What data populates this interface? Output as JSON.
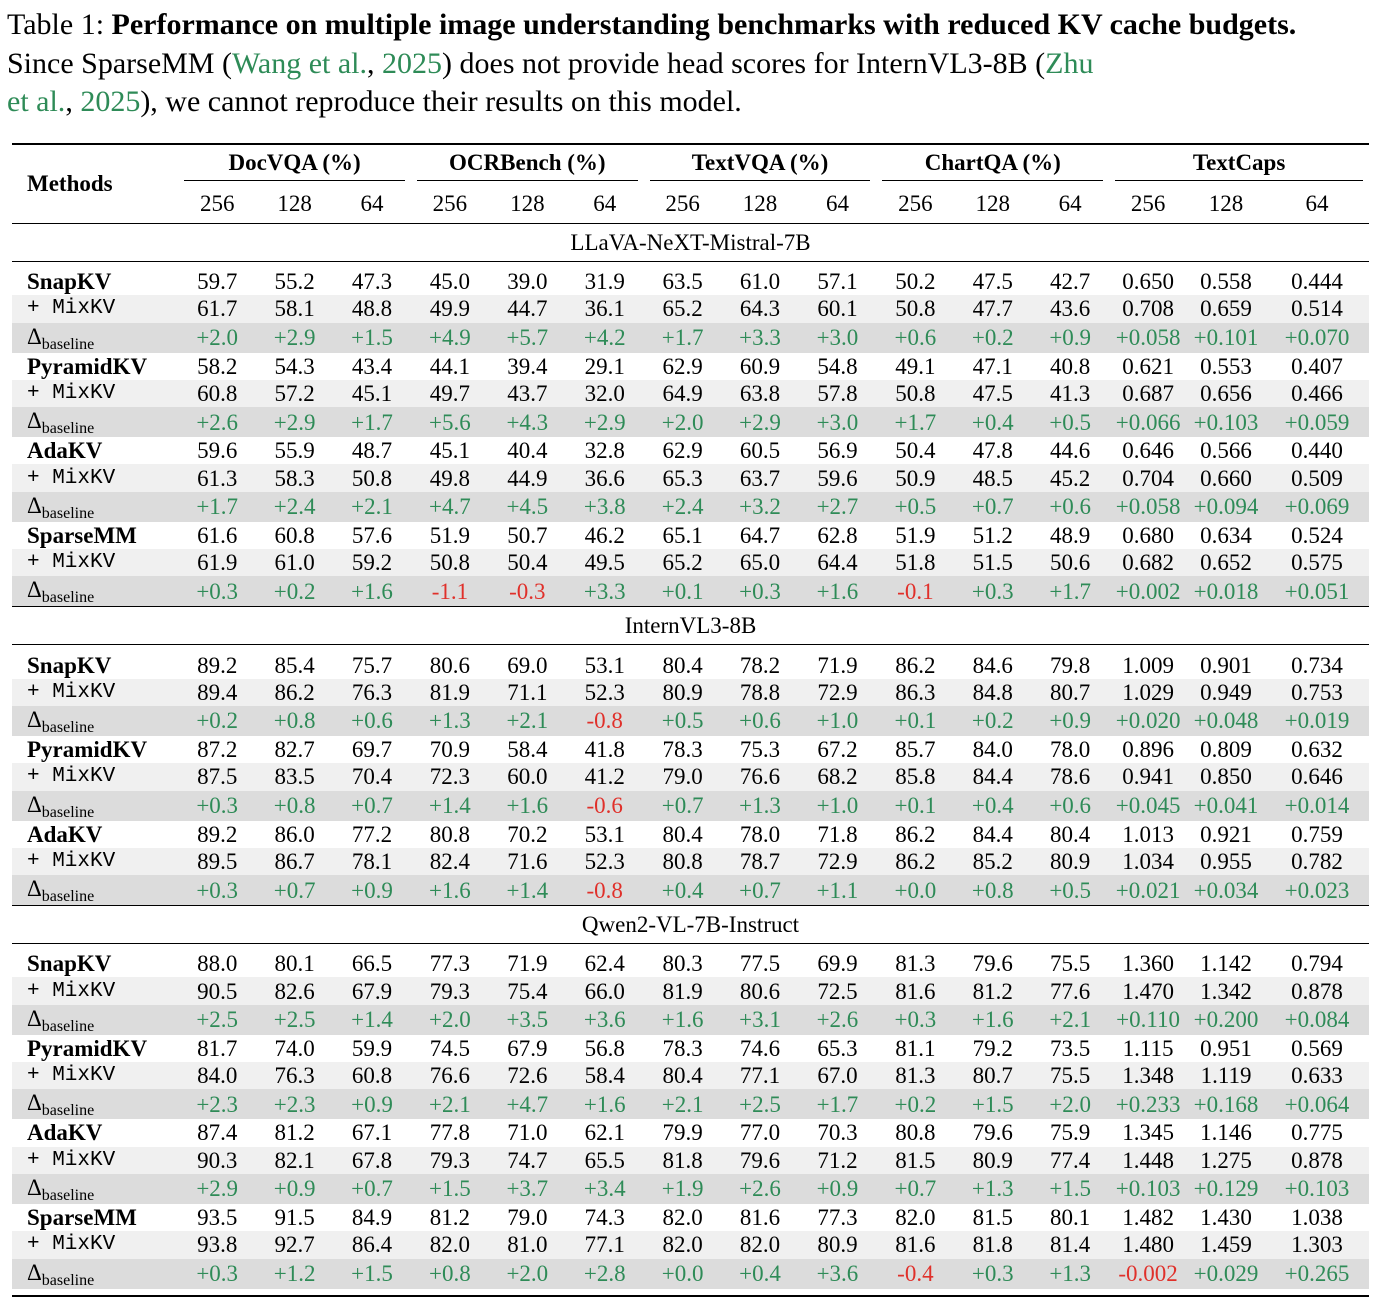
{
  "caption": {
    "label": "Table 1:",
    "title": "Performance on multiple image understanding benchmarks with reduced KV cache budgets.",
    "text_before_cite1": "Since SparseMM (",
    "cite1_name": "Wang et al.",
    "cite1_sep": ", ",
    "cite1_year": "2025",
    "text_between": ") does not provide head scores for InternVL3-8B (",
    "cite2_name_line1": "Zhu",
    "cite2_name_line2": "et al.",
    "cite2_sep": ", ",
    "cite2_year": "2025",
    "text_after": "), we cannot reproduce their results on this model."
  },
  "table": {
    "methods_header": "Methods",
    "groups": [
      "DocVQA (%)",
      "OCRBench (%)",
      "TextVQA (%)",
      "ChartQA (%)",
      "TextCaps"
    ],
    "budgets": [
      "256",
      "128",
      "64"
    ],
    "mix_label": "+ MixKV",
    "delta_label": "Δ",
    "delta_sub": "baseline",
    "sections": [
      {
        "model": "LLaVA-NeXT-Mistral-7B",
        "blocks": [
          {
            "method": "SnapKV",
            "base": [
              "59.7",
              "55.2",
              "47.3",
              "45.0",
              "39.0",
              "31.9",
              "63.5",
              "61.0",
              "57.1",
              "50.2",
              "47.5",
              "42.7",
              "0.650",
              "0.558",
              "0.444"
            ],
            "mix": [
              "61.7",
              "58.1",
              "48.8",
              "49.9",
              "44.7",
              "36.1",
              "65.2",
              "64.3",
              "60.1",
              "50.8",
              "47.7",
              "43.6",
              "0.708",
              "0.659",
              "0.514"
            ],
            "delta": [
              "+2.0",
              "+2.9",
              "+1.5",
              "+4.9",
              "+5.7",
              "+4.2",
              "+1.7",
              "+3.3",
              "+3.0",
              "+0.6",
              "+0.2",
              "+0.9",
              "+0.058",
              "+0.101",
              "+0.070"
            ]
          },
          {
            "method": "PyramidKV",
            "base": [
              "58.2",
              "54.3",
              "43.4",
              "44.1",
              "39.4",
              "29.1",
              "62.9",
              "60.9",
              "54.8",
              "49.1",
              "47.1",
              "40.8",
              "0.621",
              "0.553",
              "0.407"
            ],
            "mix": [
              "60.8",
              "57.2",
              "45.1",
              "49.7",
              "43.7",
              "32.0",
              "64.9",
              "63.8",
              "57.8",
              "50.8",
              "47.5",
              "41.3",
              "0.687",
              "0.656",
              "0.466"
            ],
            "delta": [
              "+2.6",
              "+2.9",
              "+1.7",
              "+5.6",
              "+4.3",
              "+2.9",
              "+2.0",
              "+2.9",
              "+3.0",
              "+1.7",
              "+0.4",
              "+0.5",
              "+0.066",
              "+0.103",
              "+0.059"
            ]
          },
          {
            "method": "AdaKV",
            "base": [
              "59.6",
              "55.9",
              "48.7",
              "45.1",
              "40.4",
              "32.8",
              "62.9",
              "60.5",
              "56.9",
              "50.4",
              "47.8",
              "44.6",
              "0.646",
              "0.566",
              "0.440"
            ],
            "mix": [
              "61.3",
              "58.3",
              "50.8",
              "49.8",
              "44.9",
              "36.6",
              "65.3",
              "63.7",
              "59.6",
              "50.9",
              "48.5",
              "45.2",
              "0.704",
              "0.660",
              "0.509"
            ],
            "delta": [
              "+1.7",
              "+2.4",
              "+2.1",
              "+4.7",
              "+4.5",
              "+3.8",
              "+2.4",
              "+3.2",
              "+2.7",
              "+0.5",
              "+0.7",
              "+0.6",
              "+0.058",
              "+0.094",
              "+0.069"
            ]
          },
          {
            "method": "SparseMM",
            "base": [
              "61.6",
              "60.8",
              "57.6",
              "51.9",
              "50.7",
              "46.2",
              "65.1",
              "64.7",
              "62.8",
              "51.9",
              "51.2",
              "48.9",
              "0.680",
              "0.634",
              "0.524"
            ],
            "mix": [
              "61.9",
              "61.0",
              "59.2",
              "50.8",
              "50.4",
              "49.5",
              "65.2",
              "65.0",
              "64.4",
              "51.8",
              "51.5",
              "50.6",
              "0.682",
              "0.652",
              "0.575"
            ],
            "delta": [
              "+0.3",
              "+0.2",
              "+1.6",
              "-1.1",
              "-0.3",
              "+3.3",
              "+0.1",
              "+0.3",
              "+1.6",
              "-0.1",
              "+0.3",
              "+1.7",
              "+0.002",
              "+0.018",
              "+0.051"
            ]
          }
        ]
      },
      {
        "model": "InternVL3-8B",
        "blocks": [
          {
            "method": "SnapKV",
            "base": [
              "89.2",
              "85.4",
              "75.7",
              "80.6",
              "69.0",
              "53.1",
              "80.4",
              "78.2",
              "71.9",
              "86.2",
              "84.6",
              "79.8",
              "1.009",
              "0.901",
              "0.734"
            ],
            "mix": [
              "89.4",
              "86.2",
              "76.3",
              "81.9",
              "71.1",
              "52.3",
              "80.9",
              "78.8",
              "72.9",
              "86.3",
              "84.8",
              "80.7",
              "1.029",
              "0.949",
              "0.753"
            ],
            "delta": [
              "+0.2",
              "+0.8",
              "+0.6",
              "+1.3",
              "+2.1",
              "-0.8",
              "+0.5",
              "+0.6",
              "+1.0",
              "+0.1",
              "+0.2",
              "+0.9",
              "+0.020",
              "+0.048",
              "+0.019"
            ]
          },
          {
            "method": "PyramidKV",
            "base": [
              "87.2",
              "82.7",
              "69.7",
              "70.9",
              "58.4",
              "41.8",
              "78.3",
              "75.3",
              "67.2",
              "85.7",
              "84.0",
              "78.0",
              "0.896",
              "0.809",
              "0.632"
            ],
            "mix": [
              "87.5",
              "83.5",
              "70.4",
              "72.3",
              "60.0",
              "41.2",
              "79.0",
              "76.6",
              "68.2",
              "85.8",
              "84.4",
              "78.6",
              "0.941",
              "0.850",
              "0.646"
            ],
            "delta": [
              "+0.3",
              "+0.8",
              "+0.7",
              "+1.4",
              "+1.6",
              "-0.6",
              "+0.7",
              "+1.3",
              "+1.0",
              "+0.1",
              "+0.4",
              "+0.6",
              "+0.045",
              "+0.041",
              "+0.014"
            ]
          },
          {
            "method": "AdaKV",
            "base": [
              "89.2",
              "86.0",
              "77.2",
              "80.8",
              "70.2",
              "53.1",
              "80.4",
              "78.0",
              "71.8",
              "86.2",
              "84.4",
              "80.4",
              "1.013",
              "0.921",
              "0.759"
            ],
            "mix": [
              "89.5",
              "86.7",
              "78.1",
              "82.4",
              "71.6",
              "52.3",
              "80.8",
              "78.7",
              "72.9",
              "86.2",
              "85.2",
              "80.9",
              "1.034",
              "0.955",
              "0.782"
            ],
            "delta": [
              "+0.3",
              "+0.7",
              "+0.9",
              "+1.6",
              "+1.4",
              "-0.8",
              "+0.4",
              "+0.7",
              "+1.1",
              "+0.0",
              "+0.8",
              "+0.5",
              "+0.021",
              "+0.034",
              "+0.023"
            ]
          }
        ]
      },
      {
        "model": "Qwen2-VL-7B-Instruct",
        "blocks": [
          {
            "method": "SnapKV",
            "base": [
              "88.0",
              "80.1",
              "66.5",
              "77.3",
              "71.9",
              "62.4",
              "80.3",
              "77.5",
              "69.9",
              "81.3",
              "79.6",
              "75.5",
              "1.360",
              "1.142",
              "0.794"
            ],
            "mix": [
              "90.5",
              "82.6",
              "67.9",
              "79.3",
              "75.4",
              "66.0",
              "81.9",
              "80.6",
              "72.5",
              "81.6",
              "81.2",
              "77.6",
              "1.470",
              "1.342",
              "0.878"
            ],
            "delta": [
              "+2.5",
              "+2.5",
              "+1.4",
              "+2.0",
              "+3.5",
              "+3.6",
              "+1.6",
              "+3.1",
              "+2.6",
              "+0.3",
              "+1.6",
              "+2.1",
              "+0.110",
              "+0.200",
              "+0.084"
            ]
          },
          {
            "method": "PyramidKV",
            "base": [
              "81.7",
              "74.0",
              "59.9",
              "74.5",
              "67.9",
              "56.8",
              "78.3",
              "74.6",
              "65.3",
              "81.1",
              "79.2",
              "73.5",
              "1.115",
              "0.951",
              "0.569"
            ],
            "mix": [
              "84.0",
              "76.3",
              "60.8",
              "76.6",
              "72.6",
              "58.4",
              "80.4",
              "77.1",
              "67.0",
              "81.3",
              "80.7",
              "75.5",
              "1.348",
              "1.119",
              "0.633"
            ],
            "delta": [
              "+2.3",
              "+2.3",
              "+0.9",
              "+2.1",
              "+4.7",
              "+1.6",
              "+2.1",
              "+2.5",
              "+1.7",
              "+0.2",
              "+1.5",
              "+2.0",
              "+0.233",
              "+0.168",
              "+0.064"
            ]
          },
          {
            "method": "AdaKV",
            "base": [
              "87.4",
              "81.2",
              "67.1",
              "77.8",
              "71.0",
              "62.1",
              "79.9",
              "77.0",
              "70.3",
              "80.8",
              "79.6",
              "75.9",
              "1.345",
              "1.146",
              "0.775"
            ],
            "mix": [
              "90.3",
              "82.1",
              "67.8",
              "79.3",
              "74.7",
              "65.5",
              "81.8",
              "79.6",
              "71.2",
              "81.5",
              "80.9",
              "77.4",
              "1.448",
              "1.275",
              "0.878"
            ],
            "delta": [
              "+2.9",
              "+0.9",
              "+0.7",
              "+1.5",
              "+3.7",
              "+3.4",
              "+1.9",
              "+2.6",
              "+0.9",
              "+0.7",
              "+1.3",
              "+1.5",
              "+0.103",
              "+0.129",
              "+0.103"
            ]
          },
          {
            "method": "SparseMM",
            "base": [
              "93.5",
              "91.5",
              "84.9",
              "81.2",
              "79.0",
              "74.3",
              "82.0",
              "81.6",
              "77.3",
              "82.0",
              "81.5",
              "80.1",
              "1.482",
              "1.430",
              "1.038"
            ],
            "mix": [
              "93.8",
              "92.7",
              "86.4",
              "82.0",
              "81.0",
              "77.1",
              "82.0",
              "82.0",
              "80.9",
              "81.6",
              "81.8",
              "81.4",
              "1.480",
              "1.459",
              "1.303"
            ],
            "delta": [
              "+0.3",
              "+1.2",
              "+1.5",
              "+0.8",
              "+2.0",
              "+2.8",
              "+0.0",
              "+0.4",
              "+3.6",
              "-0.4",
              "+0.3",
              "+1.3",
              "-0.002",
              "+0.029",
              "+0.265"
            ]
          }
        ]
      }
    ]
  }
}
